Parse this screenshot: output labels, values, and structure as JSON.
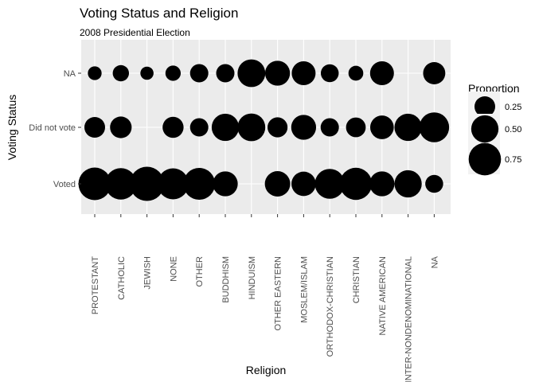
{
  "chart_data": {
    "type": "scatter",
    "title": "Voting Status and Religion",
    "subtitle": "2008 Presidential Election",
    "xlabel": "Religion",
    "ylabel": "Voting Status",
    "categories": [
      "PROTESTANT",
      "CATHOLIC",
      "JEWISH",
      "NONE",
      "OTHER",
      "BUDDHISM",
      "HINDUISM",
      "OTHER EASTERN",
      "MOSLEM/ISLAM",
      "ORTHODOX-CHRISTIAN",
      "CHRISTIAN",
      "NATIVE AMERICAN",
      "INTER-NONDENOMINATIONAL",
      "NA"
    ],
    "y_categories": [
      "Voted",
      "Did not vote",
      "NA"
    ],
    "series": [
      {
        "name": "Voted",
        "values": [
          0.76,
          0.7,
          0.86,
          0.68,
          0.72,
          0.4,
          null,
          0.42,
          0.38,
          0.62,
          0.74,
          0.4,
          0.5,
          0.17
        ]
      },
      {
        "name": "Did not vote",
        "values": [
          0.25,
          0.28,
          null,
          0.26,
          0.18,
          0.5,
          0.52,
          0.23,
          0.4,
          0.18,
          0.22,
          0.35,
          0.5,
          0.62
        ]
      },
      {
        "name": "NA",
        "values": [
          0.08,
          0.13,
          0.07,
          0.11,
          0.18,
          0.18,
          0.52,
          0.4,
          0.36,
          0.17,
          0.1,
          0.36,
          null,
          0.3
        ]
      }
    ],
    "legend": {
      "title": "Proportion",
      "position": "right",
      "breaks": [
        0.25,
        0.5,
        0.75
      ],
      "labels": [
        "0.25",
        "0.50",
        "0.75"
      ]
    },
    "grid": true,
    "point_color": "#000000",
    "panel_color": "#ebebeb",
    "grid_color": "#ffffff"
  }
}
